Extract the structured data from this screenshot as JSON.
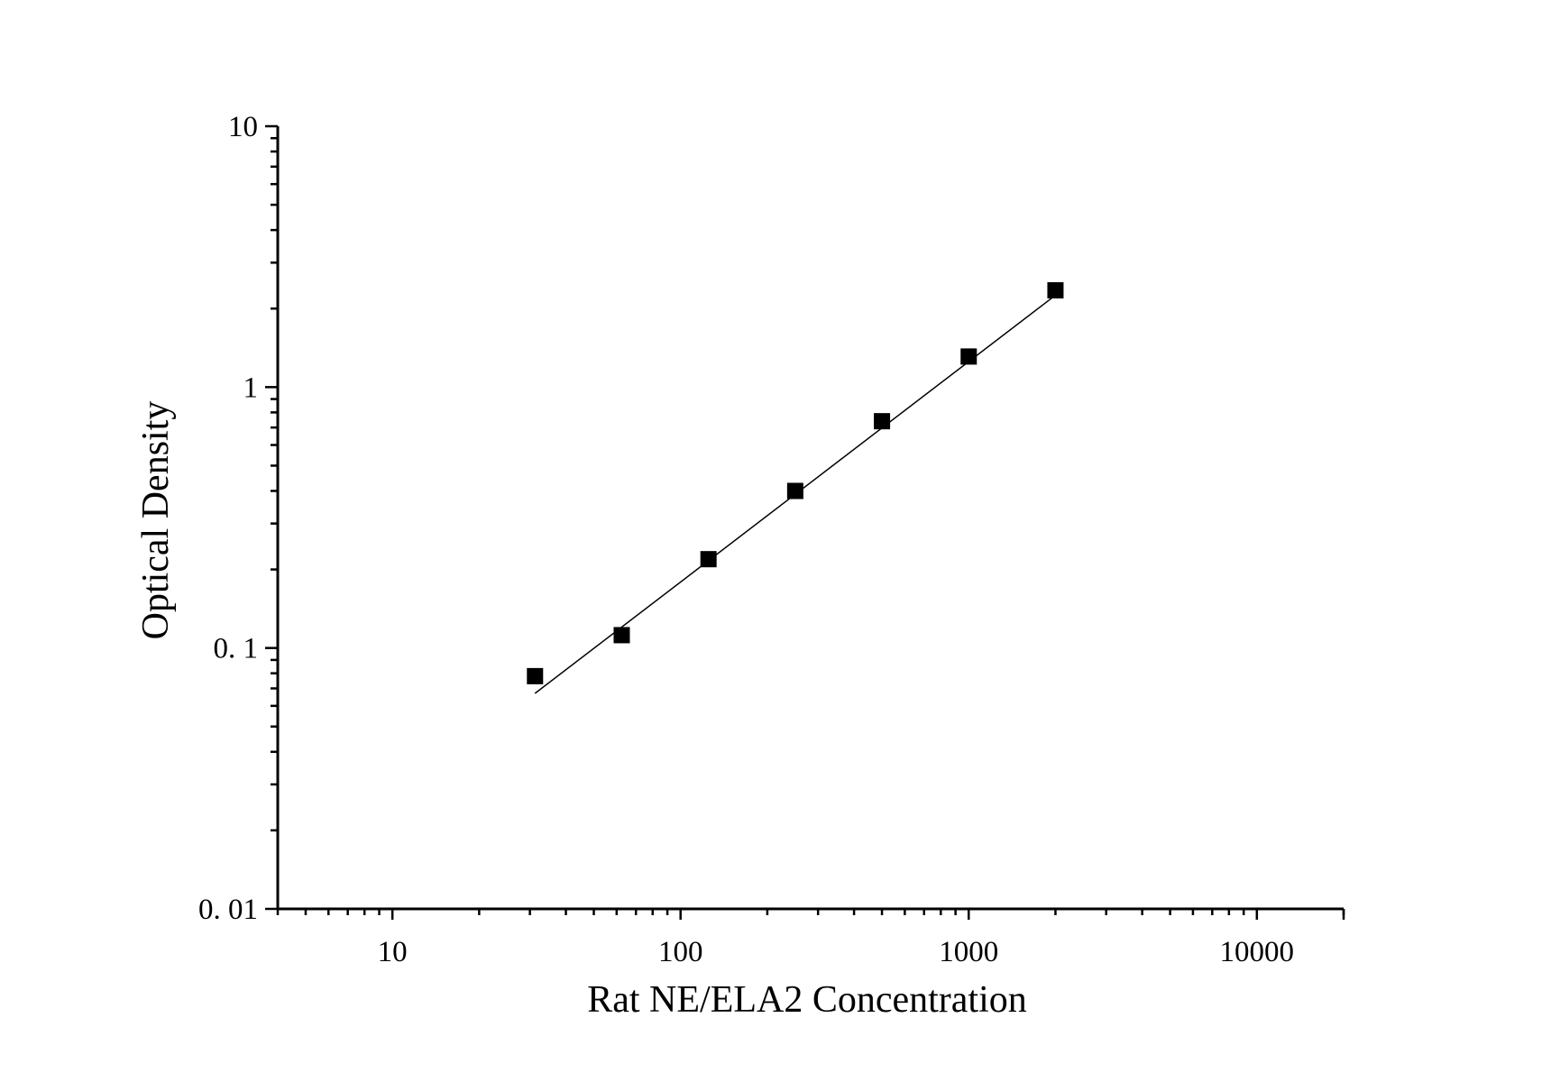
{
  "chart_data": {
    "type": "scatter",
    "xlabel": "Rat NE/ELA2 Concentration",
    "ylabel": "Optical Density",
    "x_scale": "log",
    "y_scale": "log",
    "xlim": [
      4,
      20000
    ],
    "ylim": [
      0.01,
      10
    ],
    "x_ticks": [
      10,
      100,
      1000,
      10000
    ],
    "x_tick_labels": [
      "10",
      "100",
      "1000",
      "10000"
    ],
    "y_ticks": [
      0.01,
      0.1,
      1,
      10
    ],
    "y_tick_labels": [
      "0. 01",
      "0. 1",
      "1",
      "10"
    ],
    "grid": false,
    "legend": false,
    "series": [
      {
        "marker": "square",
        "color": "#000000",
        "x": [
          31.25,
          62.5,
          125,
          250,
          500,
          1000,
          2000
        ],
        "y": [
          0.078,
          0.112,
          0.219,
          0.4,
          0.74,
          1.31,
          2.35
        ]
      }
    ],
    "fit_line": {
      "color": "#000000",
      "x": [
        31.25,
        2000
      ],
      "y": [
        0.067,
        2.25
      ]
    }
  }
}
